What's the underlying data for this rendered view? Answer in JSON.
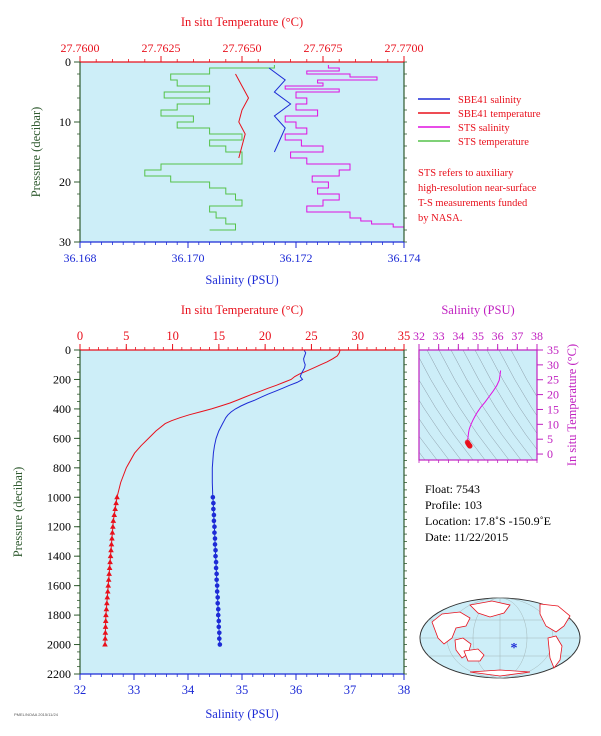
{
  "chart_data": [
    {
      "id": "near_surface",
      "type": "line",
      "top_axis_label": "In situ Temperature (°C)",
      "top_ticks": [
        "27.7600",
        "27.7625",
        "27.7650",
        "27.7675",
        "27.7700"
      ],
      "top_range": [
        27.76,
        27.77
      ],
      "xlabel": "Salinity (PSU)",
      "x_ticks": [
        "36.168",
        "36.170",
        "36.172",
        "36.174"
      ],
      "xlim": [
        36.168,
        36.174
      ],
      "ylabel": "Pressure (decibar)",
      "y_ticks": [
        "0",
        "10",
        "20",
        "30"
      ],
      "ylim": [
        0,
        30
      ],
      "legend": [
        {
          "name": "SBE41 salinity",
          "color": "#1d2bd6"
        },
        {
          "name": "SBE41 temperature",
          "color": "#e8101c"
        },
        {
          "name": "STS salinity",
          "color": "#e010e0"
        },
        {
          "name": "STS temperature",
          "color": "#55c24a"
        }
      ],
      "sts_salinity": {
        "p": [
          0.5,
          1.0,
          1.5,
          2.0,
          2.5,
          3.0,
          3.5,
          4.0,
          4.5,
          5.0,
          6.0,
          7.0,
          8.0,
          9.0,
          10.0,
          11.0,
          12.0,
          13.0,
          14.0,
          15.0,
          16.0,
          17.0,
          18.0,
          19.0,
          20.0,
          21.0,
          22.0,
          23.0,
          24.0,
          25.0,
          26.0,
          26.5,
          27.0,
          27.5
        ],
        "s": [
          36.1726,
          36.1728,
          36.1722,
          36.173,
          36.1735,
          36.1724,
          36.1725,
          36.1718,
          36.1728,
          36.172,
          36.1722,
          36.172,
          36.1724,
          36.1718,
          36.172,
          36.1722,
          36.1718,
          36.1721,
          36.1725,
          36.1719,
          36.1722,
          36.173,
          36.1728,
          36.1723,
          36.1726,
          36.1724,
          36.1728,
          36.1725,
          36.1722,
          36.173,
          36.1732,
          36.1734,
          36.1738,
          36.174
        ]
      },
      "sts_temperature": {
        "p": [
          0.5,
          1.0,
          2.0,
          3.0,
          4.0,
          5.0,
          6.0,
          7.0,
          8.0,
          9.0,
          10.0,
          11.0,
          12.0,
          13.0,
          14.0,
          15.0,
          16.0,
          17.0,
          18.0,
          19.0,
          20.0,
          21.0,
          22.0,
          23.0,
          24.0,
          25.0,
          26.0,
          27.0,
          28.0
        ],
        "t": [
          27.766,
          27.764,
          27.7628,
          27.763,
          27.764,
          27.7626,
          27.764,
          27.763,
          27.7625,
          27.7635,
          27.763,
          27.764,
          27.765,
          27.764,
          27.7645,
          27.765,
          27.765,
          27.7625,
          27.762,
          27.7628,
          27.764,
          27.7645,
          27.7648,
          27.765,
          27.764,
          27.7642,
          27.7645,
          27.7648,
          27.764
        ]
      },
      "sbe41_salinity": {
        "p": [
          1,
          3,
          5,
          7,
          9,
          11,
          13,
          15
        ],
        "s": [
          36.1715,
          36.1718,
          36.1716,
          36.1719,
          36.1716,
          36.1718,
          36.1717,
          36.1716
        ]
      },
      "sbe41_temperature": {
        "p": [
          2,
          4,
          6,
          8,
          10,
          12,
          14,
          16
        ],
        "t": [
          27.7648,
          27.765,
          27.7652,
          27.765,
          27.7649,
          27.7651,
          27.765,
          27.7649
        ]
      }
    },
    {
      "id": "full_profile",
      "type": "line",
      "top_axis_label": "In situ Temperature (°C)",
      "top_ticks": [
        "0",
        "5",
        "10",
        "15",
        "20",
        "25",
        "30",
        "35"
      ],
      "top_range": [
        0,
        35
      ],
      "xlabel": "Salinity (PSU)",
      "x_ticks": [
        "32",
        "33",
        "34",
        "35",
        "36",
        "37",
        "38"
      ],
      "xlim": [
        32,
        38
      ],
      "ylabel": "Pressure (decibar)",
      "y_ticks": [
        "0",
        "200",
        "400",
        "600",
        "800",
        "1000",
        "1200",
        "1400",
        "1600",
        "1800",
        "2000",
        "2200"
      ],
      "ylim": [
        0,
        2200
      ],
      "salinity": {
        "p": [
          0,
          20,
          40,
          60,
          80,
          100,
          120,
          140,
          160,
          180,
          200,
          220,
          240,
          260,
          280,
          300,
          320,
          340,
          360,
          380,
          400,
          420,
          440,
          460,
          480,
          500,
          550,
          600,
          650,
          700,
          800,
          900,
          1000
        ],
        "s": [
          36.15,
          36.18,
          36.16,
          36.14,
          36.15,
          36.17,
          36.16,
          36.13,
          36.1,
          36.08,
          36.12,
          36.02,
          35.88,
          35.75,
          35.62,
          35.48,
          35.36,
          35.24,
          35.1,
          34.98,
          34.88,
          34.8,
          34.74,
          34.7,
          34.67,
          34.64,
          34.57,
          34.52,
          34.49,
          34.47,
          34.45,
          34.45,
          34.46
        ]
      },
      "temperature": {
        "p": [
          0,
          20,
          40,
          60,
          80,
          100,
          120,
          140,
          160,
          180,
          200,
          220,
          240,
          260,
          280,
          300,
          320,
          340,
          360,
          380,
          400,
          420,
          440,
          460,
          480,
          500,
          550,
          600,
          650,
          700,
          800,
          900,
          1000
        ],
        "t": [
          28.1,
          28.0,
          27.8,
          27.3,
          26.7,
          26.0,
          25.3,
          24.6,
          23.8,
          23.2,
          22.8,
          22.0,
          21.2,
          20.3,
          19.5,
          18.6,
          17.8,
          17.0,
          16.2,
          15.2,
          14.2,
          13.0,
          11.8,
          10.8,
          9.9,
          9.2,
          8.2,
          7.4,
          6.6,
          5.9,
          5.0,
          4.4,
          4.0
        ]
      },
      "salinity_points": {
        "p": [
          1000,
          1040,
          1080,
          1120,
          1160,
          1200,
          1240,
          1280,
          1320,
          1360,
          1400,
          1440,
          1480,
          1520,
          1560,
          1600,
          1640,
          1680,
          1720,
          1760,
          1800,
          1840,
          1880,
          1920,
          1960,
          2000
        ],
        "s": [
          34.46,
          34.47,
          34.47,
          34.48,
          34.48,
          34.49,
          34.49,
          34.5,
          34.5,
          34.51,
          34.51,
          34.52,
          34.52,
          34.53,
          34.53,
          34.54,
          34.54,
          34.55,
          34.55,
          34.56,
          34.56,
          34.57,
          34.57,
          34.58,
          34.58,
          34.59
        ]
      },
      "temperature_points": {
        "p": [
          1000,
          1040,
          1080,
          1120,
          1160,
          1200,
          1240,
          1280,
          1320,
          1360,
          1400,
          1440,
          1480,
          1520,
          1560,
          1600,
          1640,
          1680,
          1720,
          1760,
          1800,
          1840,
          1880,
          1920,
          1960,
          2000
        ],
        "t": [
          4.0,
          3.9,
          3.8,
          3.7,
          3.6,
          3.55,
          3.5,
          3.45,
          3.4,
          3.35,
          3.3,
          3.25,
          3.2,
          3.15,
          3.1,
          3.05,
          3.0,
          2.95,
          2.9,
          2.85,
          2.8,
          2.78,
          2.76,
          2.74,
          2.72,
          2.7
        ]
      }
    },
    {
      "id": "ts_diagram",
      "type": "scatter",
      "top_axis_label": "Salinity (PSU)",
      "x_ticks": [
        "32",
        "33",
        "34",
        "35",
        "36",
        "37",
        "38"
      ],
      "xlim": [
        32,
        38
      ],
      "right_axis_label": "In situ Temperature (°C)",
      "y_ticks": [
        "0",
        "5",
        "10",
        "15",
        "20",
        "25",
        "30",
        "35"
      ],
      "ylim": [
        -2,
        35
      ],
      "curve": {
        "s": [
          36.15,
          36.12,
          36.08,
          35.95,
          35.75,
          35.55,
          35.35,
          35.15,
          34.98,
          34.85,
          34.74,
          34.66,
          34.6,
          34.55,
          34.52,
          34.5,
          34.48,
          34.46
        ],
        "t": [
          28.1,
          26.5,
          24.8,
          23.0,
          21.0,
          19.2,
          17.4,
          15.8,
          14.2,
          12.8,
          11.4,
          10.2,
          9.2,
          8.2,
          7.2,
          6.2,
          5.0,
          4.0
        ]
      },
      "deep": {
        "s": [
          34.46,
          34.48,
          34.5,
          34.52,
          34.54,
          34.56,
          34.58,
          34.59
        ],
        "t": [
          4.0,
          3.7,
          3.5,
          3.3,
          3.1,
          2.9,
          2.8,
          2.7
        ]
      }
    }
  ],
  "info": {
    "float": "Float:  7543",
    "profile": "Profile:  103",
    "location": "Location:  17.8˚S  -150.9˚E",
    "date": "Date:  11/22/2015"
  },
  "note": [
    "STS refers to auxiliary",
    "high-resolution near-surface",
    "T-S measurements funded",
    "by NASA."
  ],
  "credit": "PMEL/NOAA  2015/11/24",
  "colors": {
    "temperature": "#e8101c",
    "salinity": "#1d2bd6",
    "sts_salinity": "#e010e0",
    "sts_temperature": "#55c24a",
    "axis_left": "#2f5a2f",
    "axis_bottom": "#1d2bd6",
    "ts_axis": "#c020c0",
    "panel_bg": "#cdeef8"
  },
  "map": {
    "marker": "*"
  }
}
